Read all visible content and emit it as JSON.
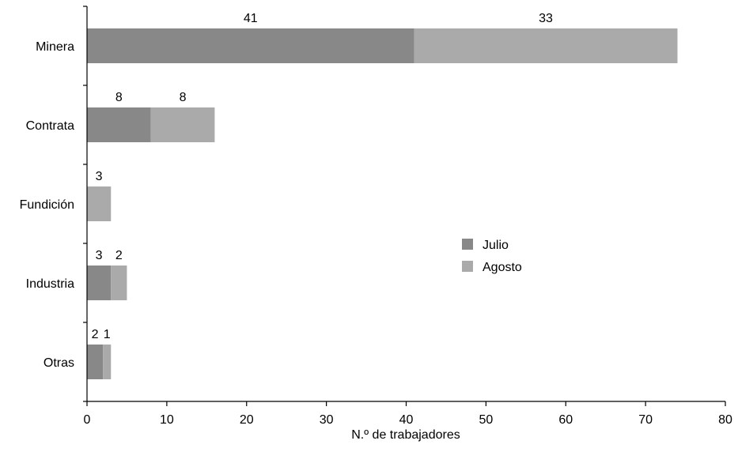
{
  "chart_data": {
    "type": "bar",
    "orientation": "horizontal",
    "stacked": true,
    "categories": [
      "Minera",
      "Contrata",
      "Fundición",
      "Industria",
      "Otras"
    ],
    "series": [
      {
        "name": "Julio",
        "color": "#888888",
        "values": [
          41,
          8,
          0,
          3,
          2
        ]
      },
      {
        "name": "Agosto",
        "color": "#aaaaaa",
        "values": [
          33,
          8,
          3,
          2,
          1
        ]
      }
    ],
    "data_labels": [
      [
        "41",
        "8",
        "",
        "3",
        "2"
      ],
      [
        "33",
        "8",
        "3",
        "2",
        "1"
      ]
    ],
    "xlabel": "N.º de trabajadores",
    "xlim": [
      0,
      80
    ],
    "xticks": [
      0,
      10,
      20,
      30,
      40,
      50,
      60,
      70,
      80
    ],
    "grid": false,
    "legend_position": "center-right"
  }
}
